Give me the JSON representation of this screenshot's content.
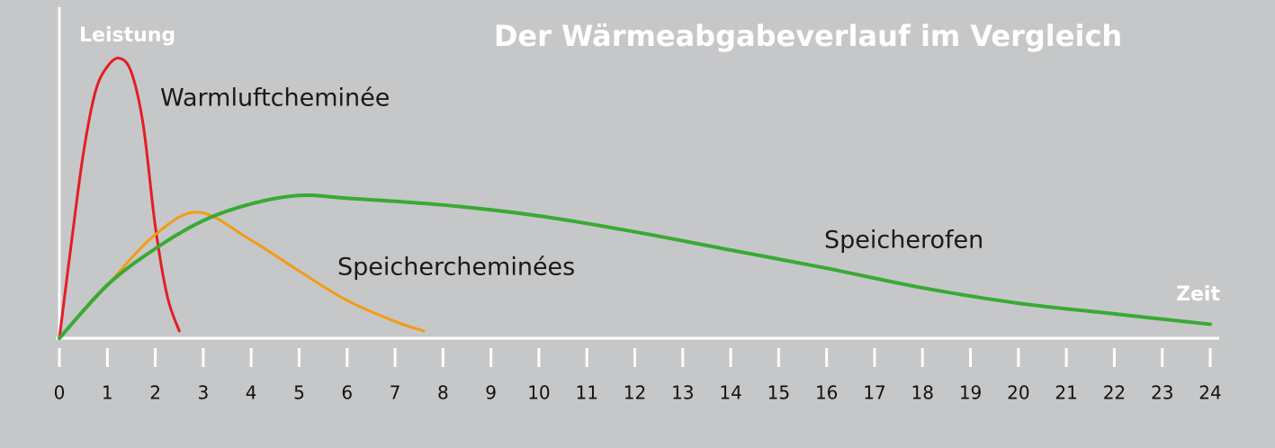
{
  "chart_data": {
    "type": "line",
    "title": "Der Wärmeabgabeverlauf im Vergleich",
    "y_label": "Leistung",
    "x_label": "Zeit",
    "xlim": [
      0,
      24
    ],
    "xticks": [
      0,
      1,
      2,
      3,
      4,
      5,
      6,
      7,
      8,
      9,
      10,
      11,
      12,
      13,
      14,
      15,
      16,
      17,
      18,
      19,
      20,
      21,
      22,
      23,
      24
    ],
    "ylim": [
      0,
      115
    ],
    "series": [
      {
        "name": "Warmluftcheminée",
        "color": "#e31e24",
        "x": [
          0,
          0.25,
          0.5,
          0.75,
          1,
          1.25,
          1.5,
          1.75,
          2,
          2.25,
          2.5
        ],
        "values": [
          0,
          34,
          66,
          88,
          97,
          100,
          95,
          76,
          40,
          15,
          2.6
        ]
      },
      {
        "name": "Speichercheminées",
        "color": "#f39c12",
        "x": [
          0,
          1,
          2,
          2.9,
          4,
          5,
          6,
          7,
          7.6
        ],
        "values": [
          0,
          19,
          37,
          45,
          35,
          24,
          13.5,
          6,
          2.6
        ]
      },
      {
        "name": "Speicherofen",
        "color": "#3aa935",
        "x": [
          0,
          1,
          2,
          3,
          4,
          5,
          6,
          8,
          10,
          12,
          14,
          16,
          18,
          20,
          22,
          24
        ],
        "values": [
          0,
          19,
          32,
          42,
          48,
          51,
          50,
          47.6,
          43.7,
          38,
          31.5,
          25,
          18,
          12.5,
          8.7,
          5
        ]
      }
    ]
  }
}
